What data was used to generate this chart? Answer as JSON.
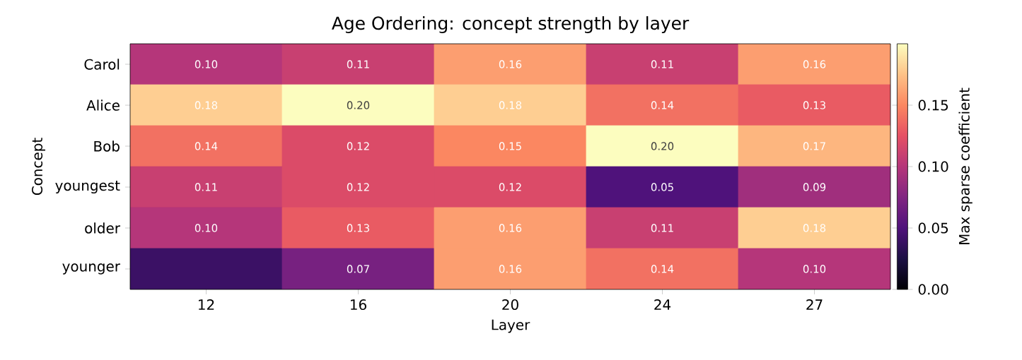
{
  "chart_data": {
    "type": "heatmap",
    "title": "Age Ordering: concept strength by layer",
    "xlabel": "Layer",
    "ylabel": "Concept",
    "clabel": "Max sparse coefficient",
    "categories": [
      "12",
      "16",
      "20",
      "24",
      "27"
    ],
    "y_categories": [
      "Carol",
      "Alice",
      "Bob",
      "youngest",
      "older",
      "younger"
    ],
    "cells": [
      [
        0.1,
        0.11,
        0.16,
        0.11,
        0.16
      ],
      [
        0.18,
        0.2,
        0.18,
        0.14,
        0.13
      ],
      [
        0.14,
        0.12,
        0.15,
        0.2,
        0.17
      ],
      [
        0.11,
        0.12,
        0.12,
        0.05,
        0.09
      ],
      [
        0.1,
        0.13,
        0.16,
        0.11,
        0.18
      ],
      [
        0.04,
        0.07,
        0.16,
        0.14,
        0.1
      ]
    ],
    "cell_labels": [
      [
        "0.10",
        "0.11",
        "0.16",
        "0.11",
        "0.16"
      ],
      [
        "0.18",
        "0.20",
        "0.18",
        "0.14",
        "0.13"
      ],
      [
        "0.14",
        "0.12",
        "0.15",
        "0.20",
        "0.17"
      ],
      [
        "0.11",
        "0.12",
        "0.12",
        "0.05",
        "0.09"
      ],
      [
        "0.10",
        "0.13",
        "0.16",
        "0.11",
        "0.18"
      ],
      [
        null,
        "0.07",
        "0.16",
        "0.14",
        "0.10"
      ]
    ],
    "clim": [
      0,
      0.2
    ],
    "cticks": [
      {
        "value": 0,
        "label": "0.00"
      },
      {
        "value": 0.05,
        "label": "0.05"
      },
      {
        "value": 0.1,
        "label": "0.10"
      },
      {
        "value": 0.15,
        "label": "0.15"
      }
    ]
  }
}
